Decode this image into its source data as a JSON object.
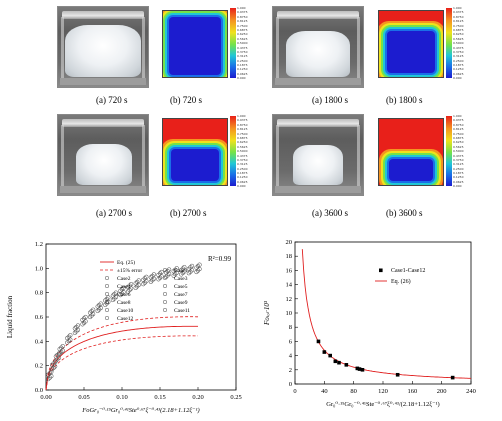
{
  "figures": [
    {
      "caption_a": "(a) 720 s",
      "caption_b": "(b) 720 s",
      "liquid_fraction": 0.1
    },
    {
      "caption_a": "(a) 1800 s",
      "caption_b": "(b) 1800 s",
      "liquid_fraction": 0.3
    },
    {
      "caption_a": "(a) 2700 s",
      "caption_b": "(b) 2700 s",
      "liquid_fraction": 0.5
    },
    {
      "caption_a": "(a) 3600 s",
      "caption_b": "(b) 3600 s",
      "liquid_fraction": 0.66
    }
  ],
  "colorbar": {
    "max": "1.000",
    "min": "0.000",
    "ticks": [
      "0.9375",
      "0.8750",
      "0.8125",
      "0.7500",
      "0.6875",
      "0.6250",
      "0.5625",
      "0.5000",
      "0.4375",
      "0.3750",
      "0.3125",
      "0.2500",
      "0.1875",
      "0.1250",
      "0.0625"
    ]
  },
  "colors": {
    "sim_hot": "#e8201a",
    "sim_cold": "#1c1ccf",
    "eq_line": "#e02020",
    "error_line": "#e02020"
  },
  "chart_data": [
    {
      "type": "scatter",
      "xlabel_html": "FoGr₀⁻⁰·¹⁵Gr₀⁰·⁴¹Ste⁰·⁶⁷ξ⁻⁰·⁴³(2.18+1.12ξ⁻¹)",
      "ylabel": "Liquid fraction",
      "annotation": "R²=0.99",
      "xlim": [
        0,
        0.25
      ],
      "ylim": [
        0,
        1.2
      ],
      "xticks": [
        "0.00",
        "0.05",
        "0.10",
        "0.15",
        "0.20",
        "0.25"
      ],
      "yticks": [
        "0.0",
        "0.2",
        "0.4",
        "0.6",
        "0.8",
        "1.0",
        "1.2"
      ],
      "legend": {
        "eq": "Eq. (25)",
        "err": "±15% error",
        "cases": [
          "Case1",
          "Case2",
          "Case3",
          "Case4",
          "Case5",
          "Case6",
          "Case7",
          "Case8",
          "Case9",
          "Case10",
          "Case11",
          "Case12"
        ]
      },
      "x": [
        0.005,
        0.01,
        0.015,
        0.02,
        0.03,
        0.04,
        0.05,
        0.06,
        0.07,
        0.08,
        0.09,
        0.1,
        0.11,
        0.12,
        0.13,
        0.14,
        0.15,
        0.16,
        0.17,
        0.18,
        0.19,
        0.2
      ],
      "y": [
        0.12,
        0.2,
        0.27,
        0.33,
        0.42,
        0.5,
        0.57,
        0.63,
        0.68,
        0.73,
        0.77,
        0.81,
        0.84,
        0.87,
        0.9,
        0.92,
        0.94,
        0.96,
        0.97,
        0.98,
        0.99,
        1.0
      ]
    },
    {
      "type": "scatter",
      "xlabel_html": "Gr₀⁰·¹⁵Gr₀⁻⁰·⁴¹Ste⁻⁰·⁶⁷ξ⁰·⁴³/(2.18+1.12ξ⁻¹)",
      "ylabel": "Foₜₒₜ·10³",
      "xlim": [
        0,
        240
      ],
      "ylim": [
        0,
        20
      ],
      "xticks": [
        "0",
        "40",
        "80",
        "120",
        "160",
        "200",
        "240"
      ],
      "yticks": [
        "0",
        "2",
        "4",
        "6",
        "8",
        "10",
        "12",
        "14",
        "16",
        "18",
        "20"
      ],
      "legend": {
        "points": "Case1-Case12",
        "curve": "Eq. (26)"
      },
      "points_x": [
        32,
        40,
        48,
        55,
        60,
        70,
        85,
        88,
        92,
        140,
        215
      ],
      "points_y": [
        6.0,
        4.5,
        4.0,
        3.2,
        3.0,
        2.7,
        2.2,
        2.1,
        2.0,
        1.3,
        0.9
      ]
    }
  ]
}
